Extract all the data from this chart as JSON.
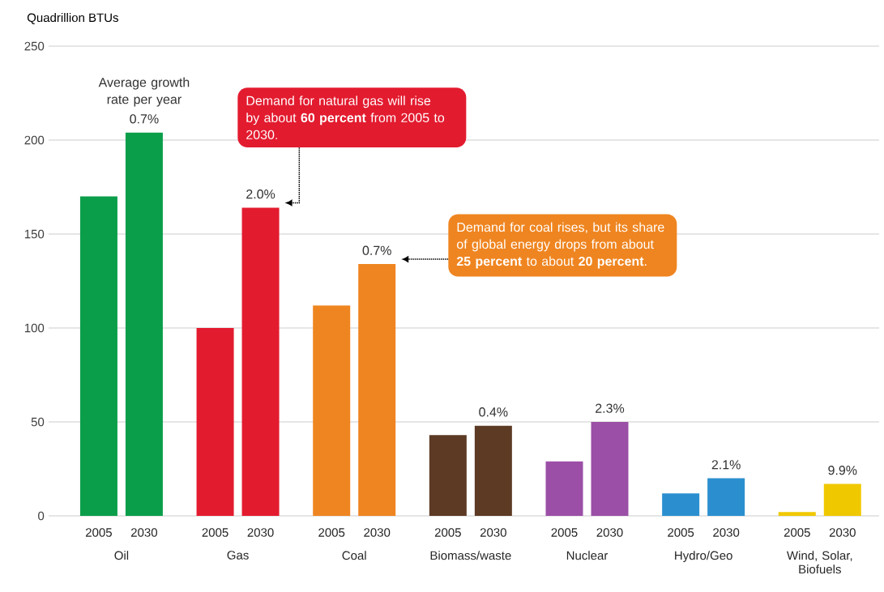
{
  "chart_data": {
    "type": "bar",
    "ylabel": "Quadrillion BTUs",
    "categories": [
      "Oil",
      "Gas",
      "Coal",
      "Biomass/waste",
      "Nuclear",
      "Hydro/Geo",
      "Wind, Solar, Biofuels"
    ],
    "series": [
      {
        "name": "2005",
        "colors": [
          "#0a9e4a",
          "#e31b2f",
          "#ef8520",
          "#5c3a24",
          "#9b4fa6",
          "#2b8fcf",
          "#f0c800"
        ],
        "values": [
          170,
          100,
          112,
          43,
          29,
          12,
          2
        ]
      },
      {
        "name": "2030",
        "colors": [
          "#0a9e4a",
          "#e31b2f",
          "#ef8520",
          "#5c3a24",
          "#9b4fa6",
          "#2b8fcf",
          "#f0c800"
        ],
        "values": [
          204,
          164,
          134,
          48,
          50,
          20,
          17
        ]
      }
    ],
    "ylim": [
      0,
      250
    ],
    "yticks": [
      0,
      50,
      100,
      150,
      200,
      250
    ],
    "grid": "y",
    "annotations": [
      "Average growth rate per year",
      "0.7%",
      "2.0%",
      "0.7%",
      "0.4%",
      "2.3%",
      "2.1%",
      "9.9%",
      "Demand for natural gas will rise by about **60 percent** from 2005 to 2030.",
      "Demand for coal rises, but its share of global energy drops from about **25 percent** to about **20 percent**."
    ]
  }
}
